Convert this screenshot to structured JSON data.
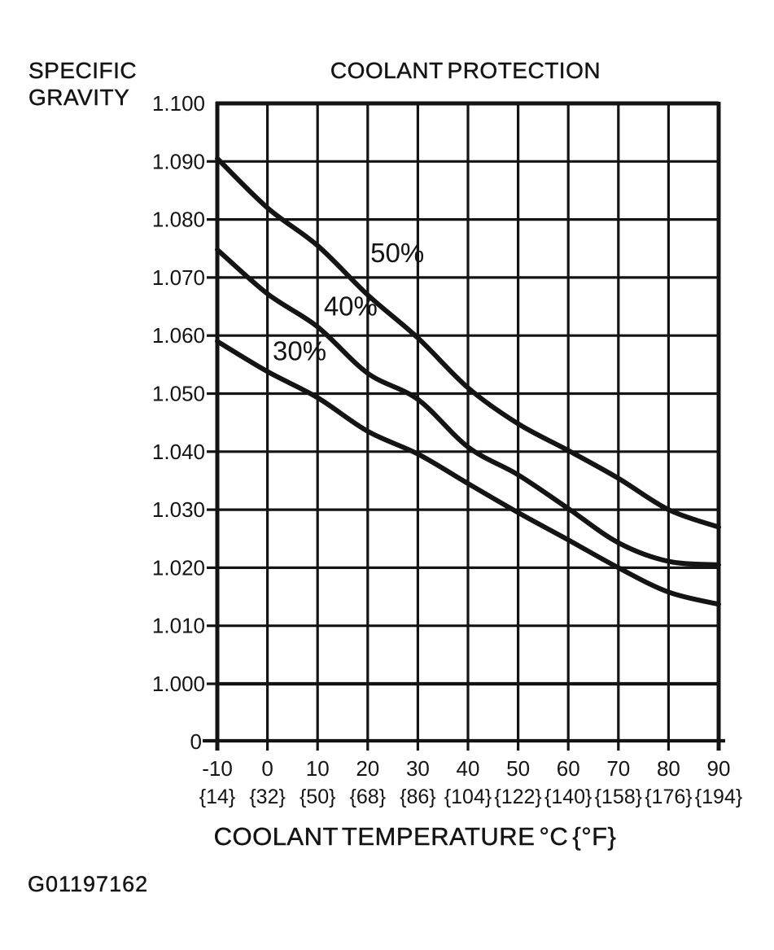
{
  "figure": {
    "ylabel_line1": "SPECIFIC",
    "ylabel_line2": "GRAVITY",
    "title": "COOLANT PROTECTION",
    "xlabel": "COOLANT TEMPERATURE °C {°F}",
    "code": "G01197162"
  },
  "chart_data": {
    "type": "line",
    "title": "COOLANT PROTECTION",
    "ylabel": "SPECIFIC GRAVITY",
    "xlabel": "COOLANT TEMPERATURE °C {°F}",
    "xlim": [
      -10,
      90
    ],
    "ylim": [
      1.0,
      1.1
    ],
    "grid": true,
    "legend_position": "inline-curve-labels",
    "x": [
      -10,
      0,
      10,
      20,
      30,
      40,
      50,
      60,
      70,
      80,
      90
    ],
    "x_tick_labels_celsius": [
      "-10",
      "0",
      "10",
      "20",
      "30",
      "40",
      "50",
      "60",
      "70",
      "80",
      "90"
    ],
    "x_tick_labels_fahrenheit": [
      "{14}",
      "{32}",
      "{50}",
      "{68}",
      "{86}",
      "{104}",
      "{122}",
      "{140}",
      "{158}",
      "{176}",
      "{194}"
    ],
    "y_ticks": [
      1.1,
      1.09,
      1.08,
      1.07,
      1.06,
      1.05,
      1.04,
      1.03,
      1.02,
      1.01,
      1.0
    ],
    "y_tick_labels": [
      "1.100",
      "1.090",
      "1.080",
      "1.070",
      "1.060",
      "1.050",
      "1.040",
      "1.030",
      "1.020",
      "1.010",
      "1.000"
    ],
    "y_axis_origin_label": "0",
    "y_axis_break": true,
    "ink_color": "#141414",
    "series": [
      {
        "name": "50%",
        "values": [
          1.0905,
          1.082,
          1.0755,
          1.067,
          1.0596,
          1.051,
          1.0448,
          1.0402,
          1.0354,
          1.03,
          1.027
        ],
        "label_x": 25.9,
        "label_y": 1.0742
      },
      {
        "name": "40%",
        "values": [
          1.0748,
          1.0672,
          1.0615,
          1.0535,
          1.049,
          1.0408,
          1.036,
          1.0302,
          1.0243,
          1.0211,
          1.0205
        ],
        "label_x": 16.6,
        "label_y": 1.065
      },
      {
        "name": "30%",
        "values": [
          1.059,
          1.0538,
          1.0493,
          1.0435,
          1.0396,
          1.0345,
          1.0295,
          1.0248,
          1.02,
          1.0158,
          1.0137
        ],
        "label_x": 6.4,
        "label_y": 1.0573
      }
    ]
  }
}
